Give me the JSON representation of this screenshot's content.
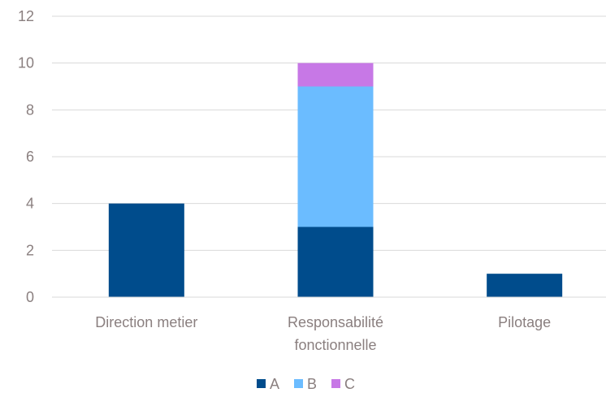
{
  "chart_data": {
    "type": "bar",
    "stacked": true,
    "title": "",
    "xlabel": "",
    "ylabel": "",
    "categories": [
      [
        "Direction metier"
      ],
      [
        "Responsabilité",
        "fonctionnelle"
      ],
      [
        "Pilotage"
      ]
    ],
    "series": [
      {
        "name": "A",
        "color": "#004c8c",
        "values": [
          4,
          3,
          1
        ]
      },
      {
        "name": "B",
        "color": "#6bbcff",
        "values": [
          0,
          6,
          0
        ]
      },
      {
        "name": "C",
        "color": "#c778e6",
        "values": [
          0,
          1,
          0
        ]
      }
    ],
    "ylim": [
      0,
      12
    ],
    "yticks": [
      0,
      2,
      4,
      6,
      8,
      10,
      12
    ],
    "grid": true,
    "legend": "bottom"
  }
}
